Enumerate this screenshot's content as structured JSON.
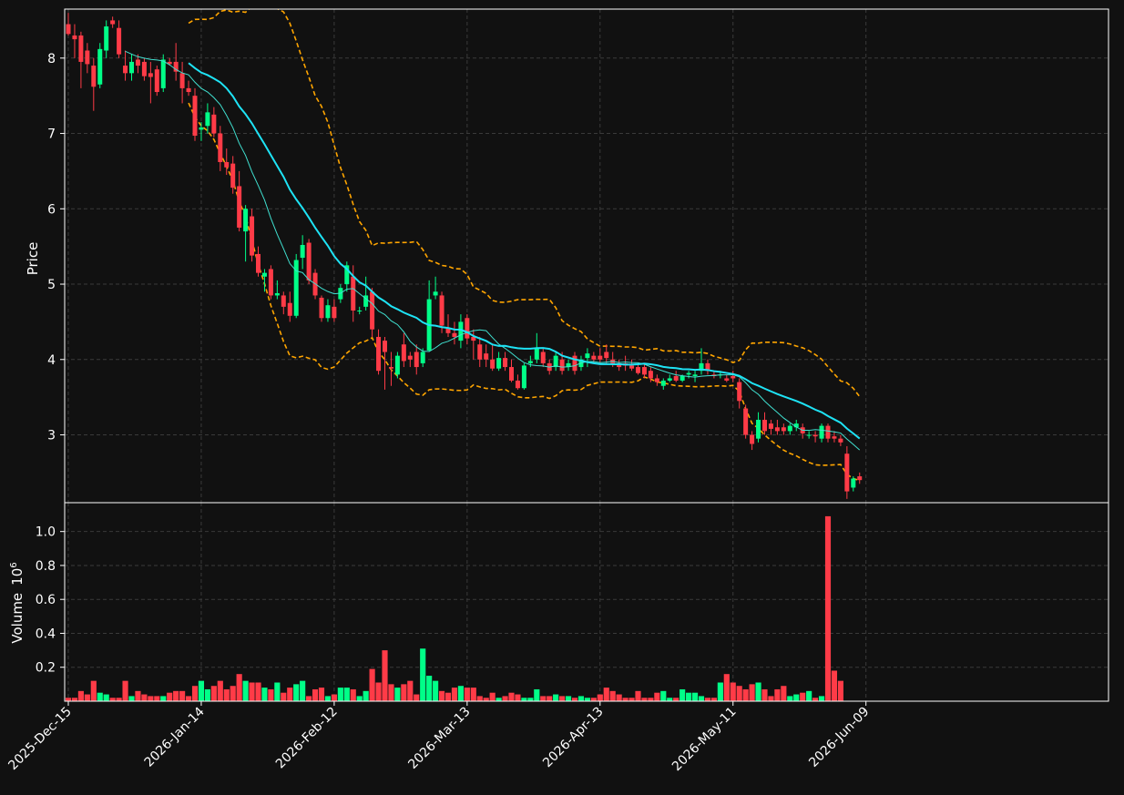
{
  "chart_data": [
    {
      "type": "candlestick",
      "ylabel": "Price",
      "yticks": [
        3,
        4,
        5,
        6,
        7,
        8
      ],
      "ylim": [
        2.1,
        8.65
      ],
      "grid": true,
      "dates_first": "2025-12-15",
      "xtick_labels": [
        "2025-Dec-15",
        "2026-Jan-14",
        "2026-Feb-12",
        "2026-Mar-13",
        "2026-Apr-13",
        "2026-May-11",
        "2026-Jun-09"
      ],
      "colors": {
        "up": "#00ff88",
        "down": "#ff3b47",
        "ma_fast": "#40e0d0",
        "ma_slow": "#1ee3f5",
        "band": "#ffa500",
        "grid": "#3a3a3a",
        "background": "#111111",
        "frame": "#ffffff"
      },
      "ohlc": [
        [
          8.45,
          8.6,
          8.3,
          8.32
        ],
        [
          8.3,
          8.45,
          8.0,
          8.25
        ],
        [
          8.3,
          8.35,
          7.6,
          7.95
        ],
        [
          8.1,
          8.2,
          7.8,
          7.92
        ],
        [
          7.9,
          8.0,
          7.3,
          7.62
        ],
        [
          7.65,
          8.2,
          7.6,
          8.12
        ],
        [
          8.1,
          8.5,
          8.0,
          8.42
        ],
        [
          8.5,
          8.55,
          8.4,
          8.45
        ],
        [
          8.4,
          8.5,
          8.0,
          8.05
        ],
        [
          7.9,
          8.1,
          7.7,
          7.8
        ],
        [
          7.8,
          8.05,
          7.7,
          7.95
        ],
        [
          7.98,
          8.05,
          7.8,
          7.9
        ],
        [
          7.95,
          8.0,
          7.7,
          7.76
        ],
        [
          7.8,
          7.95,
          7.4,
          7.75
        ],
        [
          7.85,
          7.9,
          7.5,
          7.55
        ],
        [
          7.6,
          8.05,
          7.55,
          7.98
        ],
        [
          7.95,
          8.0,
          7.9,
          7.92
        ],
        [
          7.95,
          8.2,
          7.7,
          7.82
        ],
        [
          7.8,
          7.95,
          7.4,
          7.6
        ],
        [
          7.6,
          7.7,
          7.5,
          7.55
        ],
        [
          7.5,
          7.6,
          6.9,
          6.97
        ],
        [
          7.05,
          7.15,
          6.9,
          7.08
        ],
        [
          7.1,
          7.4,
          7.0,
          7.28
        ],
        [
          7.25,
          7.35,
          6.95,
          7.0
        ],
        [
          7.0,
          7.1,
          6.5,
          6.62
        ],
        [
          6.62,
          6.8,
          6.45,
          6.55
        ],
        [
          6.6,
          6.7,
          6.2,
          6.28
        ],
        [
          6.3,
          6.5,
          5.7,
          5.75
        ],
        [
          5.7,
          6.05,
          5.3,
          6.0
        ],
        [
          5.9,
          6.0,
          5.3,
          5.38
        ],
        [
          5.4,
          5.5,
          5.1,
          5.15
        ],
        [
          5.1,
          5.2,
          4.9,
          5.15
        ],
        [
          5.2,
          5.25,
          4.8,
          4.85
        ],
        [
          4.85,
          5.05,
          4.8,
          4.88
        ],
        [
          4.85,
          4.9,
          4.6,
          4.7
        ],
        [
          4.75,
          4.9,
          4.5,
          4.58
        ],
        [
          4.58,
          5.4,
          4.55,
          5.32
        ],
        [
          5.35,
          5.65,
          5.2,
          5.52
        ],
        [
          5.55,
          5.6,
          5.0,
          5.05
        ],
        [
          5.15,
          5.2,
          4.8,
          4.85
        ],
        [
          4.82,
          4.85,
          4.5,
          4.55
        ],
        [
          4.55,
          4.8,
          4.5,
          4.72
        ],
        [
          4.7,
          4.8,
          4.5,
          4.55
        ],
        [
          4.8,
          5.0,
          4.75,
          4.95
        ],
        [
          5.0,
          5.3,
          4.9,
          5.25
        ],
        [
          5.1,
          5.25,
          4.5,
          4.65
        ],
        [
          4.65,
          4.7,
          4.6,
          4.65
        ],
        [
          4.7,
          5.1,
          4.65,
          4.85
        ],
        [
          4.9,
          4.95,
          4.3,
          4.4
        ],
        [
          4.3,
          4.4,
          3.8,
          3.85
        ],
        [
          4.25,
          4.3,
          3.6,
          4.1
        ],
        [
          3.9,
          4.1,
          3.65,
          3.88
        ],
        [
          3.8,
          4.1,
          3.75,
          4.05
        ],
        [
          4.2,
          4.35,
          3.9,
          3.98
        ],
        [
          4.05,
          4.1,
          3.9,
          4.0
        ],
        [
          4.1,
          4.2,
          3.8,
          3.9
        ],
        [
          3.95,
          4.15,
          3.9,
          4.1
        ],
        [
          4.12,
          5.05,
          4.1,
          4.8
        ],
        [
          4.85,
          5.1,
          4.8,
          4.9
        ],
        [
          4.85,
          4.9,
          4.35,
          4.45
        ],
        [
          4.42,
          4.6,
          4.3,
          4.35
        ],
        [
          4.35,
          4.5,
          4.2,
          4.3
        ],
        [
          4.25,
          4.6,
          4.15,
          4.5
        ],
        [
          4.55,
          4.6,
          4.2,
          4.28
        ],
        [
          4.3,
          4.4,
          4.0,
          4.25
        ],
        [
          4.2,
          4.3,
          3.9,
          4.0
        ],
        [
          4.08,
          4.2,
          3.9,
          4.0
        ],
        [
          4.0,
          4.2,
          3.85,
          3.88
        ],
        [
          3.88,
          4.1,
          3.85,
          4.02
        ],
        [
          4.02,
          4.1,
          3.85,
          3.9
        ],
        [
          3.9,
          4.0,
          3.7,
          3.72
        ],
        [
          3.72,
          3.8,
          3.6,
          3.62
        ],
        [
          3.62,
          3.95,
          3.6,
          3.92
        ],
        [
          3.95,
          4.05,
          3.9,
          3.98
        ],
        [
          4.0,
          4.35,
          3.95,
          4.15
        ],
        [
          4.1,
          4.15,
          3.9,
          3.95
        ],
        [
          3.95,
          4.0,
          3.8,
          3.85
        ],
        [
          3.9,
          4.1,
          3.85,
          4.05
        ],
        [
          4.0,
          4.1,
          3.8,
          3.85
        ],
        [
          3.9,
          4.0,
          3.85,
          3.95
        ],
        [
          4.05,
          4.1,
          3.8,
          3.85
        ],
        [
          3.9,
          4.05,
          3.85,
          4.0
        ],
        [
          4.02,
          4.15,
          3.9,
          4.08
        ],
        [
          4.05,
          4.1,
          3.95,
          4.0
        ],
        [
          4.05,
          4.15,
          3.95,
          4.0
        ],
        [
          4.1,
          4.2,
          3.95,
          4.02
        ],
        [
          4.0,
          4.1,
          3.9,
          3.95
        ],
        [
          3.95,
          4.0,
          3.85,
          3.9
        ],
        [
          3.95,
          4.05,
          3.85,
          3.92
        ],
        [
          3.92,
          4.0,
          3.85,
          3.88
        ],
        [
          3.9,
          3.95,
          3.8,
          3.82
        ],
        [
          3.9,
          3.95,
          3.75,
          3.8
        ],
        [
          3.85,
          3.9,
          3.7,
          3.75
        ],
        [
          3.75,
          3.8,
          3.65,
          3.7
        ],
        [
          3.65,
          3.75,
          3.6,
          3.72
        ],
        [
          3.72,
          3.8,
          3.7,
          3.75
        ],
        [
          3.78,
          3.85,
          3.7,
          3.72
        ],
        [
          3.72,
          3.8,
          3.7,
          3.78
        ],
        [
          3.8,
          3.85,
          3.75,
          3.82
        ],
        [
          3.78,
          3.85,
          3.7,
          3.8
        ],
        [
          3.85,
          4.15,
          3.8,
          3.95
        ],
        [
          3.95,
          4.0,
          3.8,
          3.85
        ],
        [
          3.8,
          3.85,
          3.75,
          3.78
        ],
        [
          3.8,
          3.85,
          3.75,
          3.8
        ],
        [
          3.75,
          3.8,
          3.7,
          3.72
        ],
        [
          3.78,
          3.85,
          3.7,
          3.75
        ],
        [
          3.7,
          3.75,
          3.35,
          3.45
        ],
        [
          3.35,
          3.4,
          2.95,
          3.0
        ],
        [
          3.0,
          3.05,
          2.8,
          2.88
        ],
        [
          2.95,
          3.3,
          2.9,
          3.2
        ],
        [
          3.2,
          3.3,
          3.0,
          3.05
        ],
        [
          3.15,
          3.2,
          3.0,
          3.08
        ],
        [
          3.1,
          3.2,
          3.0,
          3.05
        ],
        [
          3.1,
          3.15,
          3.0,
          3.05
        ],
        [
          3.05,
          3.15,
          3.0,
          3.12
        ],
        [
          3.1,
          3.2,
          3.05,
          3.15
        ],
        [
          3.1,
          3.15,
          2.95,
          3.02
        ],
        [
          3.0,
          3.05,
          2.95,
          3.0
        ],
        [
          3.0,
          3.05,
          2.9,
          2.98
        ],
        [
          2.95,
          3.15,
          2.9,
          3.12
        ],
        [
          3.12,
          3.15,
          2.9,
          2.95
        ],
        [
          2.98,
          3.05,
          2.9,
          2.95
        ],
        [
          2.95,
          3.0,
          2.85,
          2.9
        ],
        [
          2.75,
          2.85,
          2.15,
          2.25
        ],
        [
          2.3,
          2.45,
          2.25,
          2.42
        ],
        [
          2.45,
          2.5,
          2.35,
          2.4
        ]
      ],
      "volume": [
        0.02,
        0.02,
        0.06,
        0.04,
        0.12,
        0.05,
        0.04,
        0.02,
        0.02,
        0.12,
        0.03,
        0.06,
        0.04,
        0.03,
        0.03,
        0.03,
        0.05,
        0.06,
        0.06,
        0.03,
        0.09,
        0.12,
        0.07,
        0.09,
        0.12,
        0.07,
        0.09,
        0.16,
        0.12,
        0.11,
        0.11,
        0.08,
        0.07,
        0.11,
        0.05,
        0.08,
        0.1,
        0.12,
        0.03,
        0.07,
        0.08,
        0.03,
        0.04,
        0.08,
        0.08,
        0.07,
        0.03,
        0.06,
        0.19,
        0.11,
        0.3,
        0.1,
        0.08,
        0.1,
        0.12,
        0.04,
        0.31,
        0.15,
        0.12,
        0.06,
        0.05,
        0.08,
        0.09,
        0.08,
        0.08,
        0.03,
        0.02,
        0.05,
        0.02,
        0.03,
        0.05,
        0.04,
        0.02,
        0.02,
        0.07,
        0.03,
        0.03,
        0.04,
        0.03,
        0.03,
        0.02,
        0.03,
        0.02,
        0.02,
        0.04,
        0.08,
        0.06,
        0.04,
        0.02,
        0.02,
        0.06,
        0.02,
        0.02,
        0.05,
        0.06,
        0.02,
        0.02,
        0.07,
        0.05,
        0.05,
        0.03,
        0.02,
        0.02,
        0.11,
        0.16,
        0.11,
        0.09,
        0.07,
        0.1,
        0.11,
        0.07,
        0.03,
        0.07,
        0.09,
        0.03,
        0.04,
        0.05,
        0.06,
        0.02,
        0.03,
        1.09,
        0.18,
        0.12
      ],
      "ma_fast": "10-period moving average (thin cyan)",
      "ma_slow": "20-period moving average with envelope bands (bold cyan, dashed orange)"
    },
    {
      "type": "bar",
      "ylabel": "Volume",
      "yunit": "10",
      "yunit_exp": "6",
      "yticks": [
        0.2,
        0.4,
        0.6,
        0.8,
        1.0
      ],
      "ytick_labels": [
        "0.2",
        "0.4",
        "0.6",
        "0.8",
        "1.0"
      ],
      "ylim": [
        0,
        1.17
      ]
    }
  ]
}
